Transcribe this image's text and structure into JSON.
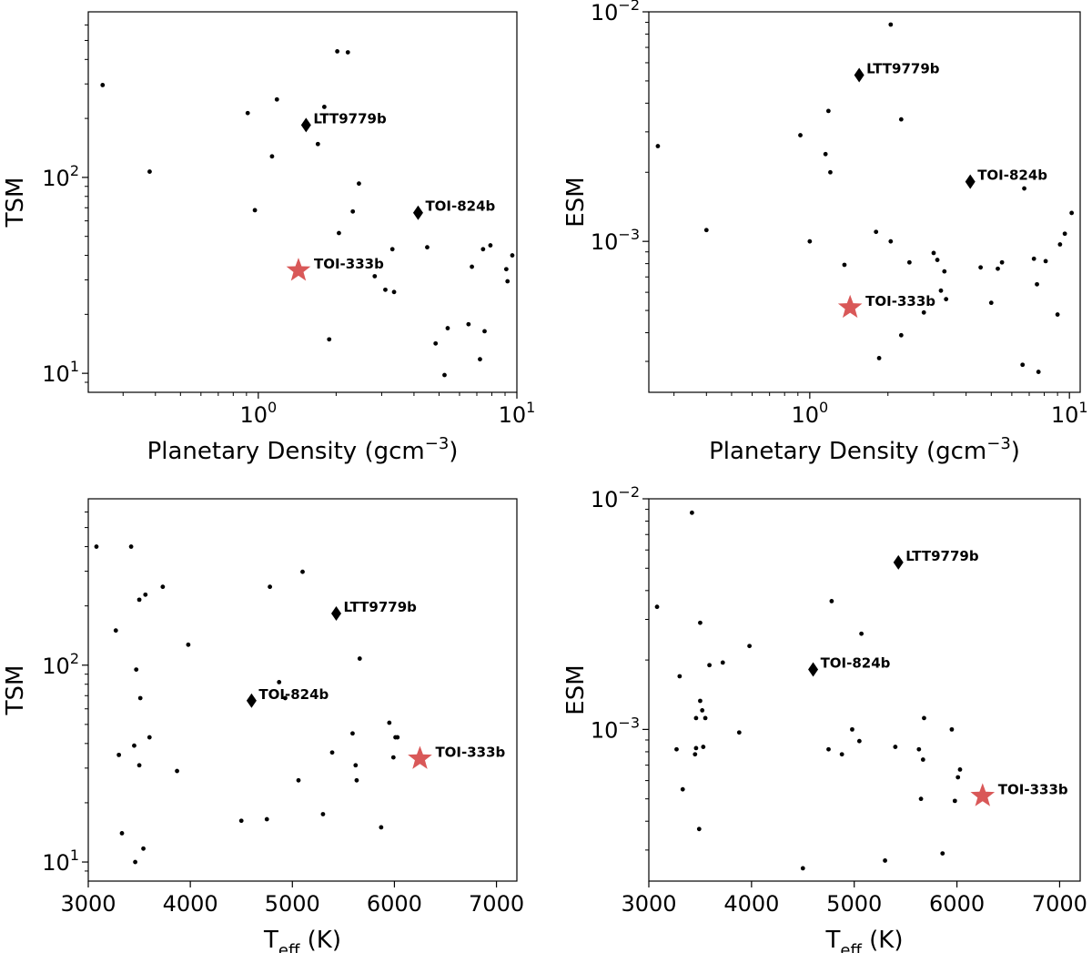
{
  "chart_data": [
    {
      "type": "scatter",
      "xlabel": {
        "base": "Planetary Density (gcm",
        "sup": "−3",
        "tail": ")"
      },
      "ylabel": "ESM",
      "xscale": "log",
      "yscale": "log",
      "xlim": [
        0.24,
        11
      ],
      "ylim": [
        0.00022,
        0.01
      ],
      "xticks": [
        {
          "base": "10",
          "exp": "0",
          "v": 1
        },
        {
          "base": "10",
          "exp": "1",
          "v": 10
        }
      ],
      "yticks": [
        {
          "base": "10",
          "exp": "−3",
          "v": 0.001
        },
        {
          "base": "10",
          "exp": "−2",
          "v": 0.01
        }
      ],
      "points": [
        [
          0.26,
          0.0026
        ],
        [
          0.4,
          0.00112
        ],
        [
          0.92,
          0.0029
        ],
        [
          1.0,
          0.001
        ],
        [
          1.15,
          0.0024
        ],
        [
          1.18,
          0.0037
        ],
        [
          1.2,
          0.002
        ],
        [
          1.36,
          0.00079
        ],
        [
          1.8,
          0.0011
        ],
        [
          1.85,
          0.00031
        ],
        [
          2.05,
          0.0088
        ],
        [
          2.05,
          0.001
        ],
        [
          2.25,
          0.0034
        ],
        [
          2.25,
          0.00039
        ],
        [
          2.42,
          0.00081
        ],
        [
          2.75,
          0.00049
        ],
        [
          3.0,
          0.00089
        ],
        [
          3.1,
          0.00083
        ],
        [
          3.2,
          0.00061
        ],
        [
          3.3,
          0.00074
        ],
        [
          3.35,
          0.00056
        ],
        [
          4.55,
          0.00077
        ],
        [
          5.0,
          0.00054
        ],
        [
          5.3,
          0.00076
        ],
        [
          5.5,
          0.00081
        ],
        [
          6.6,
          0.00029
        ],
        [
          6.7,
          0.0017
        ],
        [
          7.3,
          0.00084
        ],
        [
          7.5,
          0.00065
        ],
        [
          7.6,
          0.00027
        ],
        [
          8.1,
          0.00082
        ],
        [
          9.0,
          0.00048
        ],
        [
          9.2,
          0.00097
        ],
        [
          9.6,
          0.00108
        ],
        [
          10.2,
          0.00133
        ]
      ],
      "highlights": [
        {
          "name": "LTT9779b",
          "x": 1.55,
          "y": 0.0053,
          "marker": "diamond"
        },
        {
          "name": "TOI-824b",
          "x": 4.15,
          "y": 0.00182,
          "marker": "diamond"
        },
        {
          "name": "TOI-333b",
          "x": 1.43,
          "y": 0.000515,
          "marker": "star"
        }
      ]
    },
    {
      "type": "scatter",
      "xlabel": {
        "base": "Planetary Density (gcm",
        "sup": "−3",
        "tail": ")"
      },
      "ylabel": "TSM",
      "xscale": "log",
      "yscale": "log",
      "xlim": [
        0.22,
        10
      ],
      "ylim": [
        8,
        700
      ],
      "xticks": [
        {
          "base": "10",
          "exp": "0",
          "v": 1
        },
        {
          "base": "10",
          "exp": "1",
          "v": 10
        }
      ],
      "yticks": [
        {
          "base": "10",
          "exp": "1",
          "v": 10
        },
        {
          "base": "10",
          "exp": "2",
          "v": 100
        }
      ],
      "points": [
        [
          0.25,
          296
        ],
        [
          0.38,
          107
        ],
        [
          0.91,
          213
        ],
        [
          0.97,
          68
        ],
        [
          1.13,
          128
        ],
        [
          1.18,
          250
        ],
        [
          1.7,
          148
        ],
        [
          1.8,
          229
        ],
        [
          1.88,
          14.9
        ],
        [
          2.02,
          440
        ],
        [
          2.05,
          52
        ],
        [
          2.22,
          435
        ],
        [
          2.32,
          67
        ],
        [
          2.45,
          93
        ],
        [
          2.82,
          31.3
        ],
        [
          3.1,
          26.7
        ],
        [
          3.3,
          43
        ],
        [
          3.35,
          26
        ],
        [
          4.5,
          44
        ],
        [
          4.85,
          14.2
        ],
        [
          5.25,
          9.8
        ],
        [
          5.4,
          17
        ],
        [
          6.5,
          17.8
        ],
        [
          6.7,
          35
        ],
        [
          7.2,
          11.8
        ],
        [
          7.4,
          43
        ],
        [
          7.5,
          16.4
        ],
        [
          7.9,
          45
        ],
        [
          9.1,
          34
        ],
        [
          9.2,
          29.5
        ],
        [
          9.6,
          40
        ]
      ],
      "highlights": [
        {
          "name": "LTT9779b",
          "x": 1.53,
          "y": 185,
          "marker": "diamond"
        },
        {
          "name": "TOI-824b",
          "x": 4.15,
          "y": 66,
          "marker": "diamond"
        },
        {
          "name": "TOI-333b",
          "x": 1.43,
          "y": 33.5,
          "marker": "star"
        }
      ]
    },
    {
      "type": "scatter",
      "xlabel": {
        "base": "T",
        "sub": "eff",
        "tail": " (K)"
      },
      "ylabel": "ESM",
      "xscale": "linear",
      "yscale": "log",
      "xlim": [
        3000,
        7200
      ],
      "ylim": [
        0.00022,
        0.01
      ],
      "xticks": [
        {
          "base": "3000",
          "v": 3000
        },
        {
          "base": "4000",
          "v": 4000
        },
        {
          "base": "5000",
          "v": 5000
        },
        {
          "base": "6000",
          "v": 6000
        },
        {
          "base": "7000",
          "v": 7000
        }
      ],
      "yticks": [
        {
          "base": "10",
          "exp": "−3",
          "v": 0.001
        },
        {
          "base": "10",
          "exp": "−2",
          "v": 0.01
        }
      ],
      "points": [
        [
          3080,
          0.0034
        ],
        [
          3270,
          0.00082
        ],
        [
          3300,
          0.0017
        ],
        [
          3330,
          0.00055
        ],
        [
          3420,
          0.0087
        ],
        [
          3450,
          0.00078
        ],
        [
          3460,
          0.00112
        ],
        [
          3460,
          0.00083
        ],
        [
          3490,
          0.00037
        ],
        [
          3500,
          0.0029
        ],
        [
          3500,
          0.00133
        ],
        [
          3520,
          0.00121
        ],
        [
          3530,
          0.00084
        ],
        [
          3550,
          0.00112
        ],
        [
          3590,
          0.0019
        ],
        [
          3720,
          0.00195
        ],
        [
          3880,
          0.00097
        ],
        [
          3980,
          0.0023
        ],
        [
          4500,
          0.00025
        ],
        [
          4750,
          0.00082
        ],
        [
          4780,
          0.0036
        ],
        [
          4880,
          0.00078
        ],
        [
          4980,
          0.001
        ],
        [
          5050,
          0.00089
        ],
        [
          5070,
          0.0026
        ],
        [
          5300,
          0.00027
        ],
        [
          5400,
          0.00084
        ],
        [
          5630,
          0.00082
        ],
        [
          5650,
          0.0005
        ],
        [
          5670,
          0.00074
        ],
        [
          5680,
          0.00112
        ],
        [
          5860,
          0.00029
        ],
        [
          5950,
          0.001
        ],
        [
          5980,
          0.00049
        ],
        [
          6010,
          0.00062
        ],
        [
          6030,
          0.00067
        ]
      ],
      "highlights": [
        {
          "name": "LTT9779b",
          "x": 5430,
          "y": 0.0053,
          "marker": "diamond"
        },
        {
          "name": "TOI-824b",
          "x": 4600,
          "y": 0.00182,
          "marker": "diamond"
        },
        {
          "name": "TOI-333b",
          "x": 6250,
          "y": 0.000515,
          "marker": "star"
        }
      ]
    },
    {
      "type": "scatter",
      "xlabel": {
        "base": "T",
        "sub": "eff",
        "tail": " (K)"
      },
      "ylabel": "TSM",
      "xscale": "linear",
      "yscale": "log",
      "xlim": [
        3000,
        7200
      ],
      "ylim": [
        8,
        700
      ],
      "xticks": [
        {
          "base": "3000",
          "v": 3000
        },
        {
          "base": "4000",
          "v": 4000
        },
        {
          "base": "5000",
          "v": 5000
        },
        {
          "base": "6000",
          "v": 6000
        },
        {
          "base": "7000",
          "v": 7000
        }
      ],
      "yticks": [
        {
          "base": "10",
          "exp": "1",
          "v": 10
        },
        {
          "base": "10",
          "exp": "2",
          "v": 100
        }
      ],
      "points": [
        [
          3080,
          400
        ],
        [
          3270,
          150
        ],
        [
          3300,
          35
        ],
        [
          3330,
          14
        ],
        [
          3420,
          400
        ],
        [
          3450,
          39
        ],
        [
          3460,
          10
        ],
        [
          3470,
          95
        ],
        [
          3500,
          215
        ],
        [
          3500,
          31
        ],
        [
          3510,
          68
        ],
        [
          3540,
          11.7
        ],
        [
          3560,
          228
        ],
        [
          3600,
          43
        ],
        [
          3730,
          250
        ],
        [
          3870,
          29
        ],
        [
          3980,
          127
        ],
        [
          4500,
          16.2
        ],
        [
          4750,
          16.5
        ],
        [
          4780,
          250
        ],
        [
          4870,
          82
        ],
        [
          4930,
          68
        ],
        [
          5060,
          26
        ],
        [
          5100,
          298
        ],
        [
          5300,
          17.5
        ],
        [
          5390,
          36
        ],
        [
          5590,
          45
        ],
        [
          5620,
          31
        ],
        [
          5630,
          26
        ],
        [
          5660,
          108
        ],
        [
          5870,
          15
        ],
        [
          5950,
          51
        ],
        [
          5990,
          34
        ],
        [
          6010,
          43
        ],
        [
          6030,
          43
        ]
      ],
      "highlights": [
        {
          "name": "LTT9779b",
          "x": 5430,
          "y": 183,
          "marker": "diamond"
        },
        {
          "name": "TOI-824b",
          "x": 4600,
          "y": 66,
          "marker": "diamond"
        },
        {
          "name": "TOI-333b",
          "x": 6250,
          "y": 33.5,
          "marker": "star"
        }
      ]
    }
  ]
}
